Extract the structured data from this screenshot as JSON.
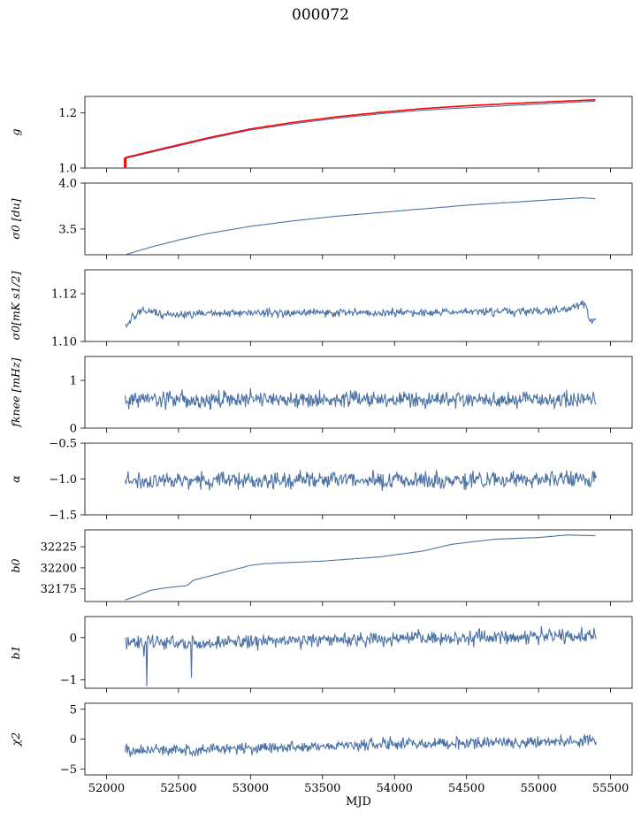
{
  "title": "000072",
  "chart_data": [
    {
      "type": "line",
      "ylabel": "g",
      "yticks": [
        1.0,
        1.2
      ],
      "ylim": [
        1.0,
        1.26
      ],
      "series": [
        {
          "color": "#4c72a4",
          "x": [
            52130,
            52400,
            52700,
            53000,
            53300,
            53600,
            53900,
            54200,
            54500,
            54800,
            55100,
            55400
          ],
          "y": [
            1.035,
            1.068,
            1.105,
            1.138,
            1.161,
            1.181,
            1.197,
            1.21,
            1.219,
            1.227,
            1.235,
            1.243
          ]
        },
        {
          "color": "#ff0000",
          "x": [
            52130,
            52400,
            52700,
            53000,
            53300,
            53600,
            53900,
            54200,
            54500,
            54800,
            55100,
            55400
          ],
          "y": [
            1.038,
            1.072,
            1.109,
            1.142,
            1.166,
            1.186,
            1.202,
            1.216,
            1.226,
            1.234,
            1.241,
            1.248
          ]
        }
      ]
    },
    {
      "type": "line",
      "ylabel": "σ0 [du]",
      "yticks": [
        3.5,
        4.0
      ],
      "ylim": [
        3.22,
        4.0
      ],
      "series": [
        {
          "color": "#4c72a4",
          "x": [
            52130,
            52300,
            52500,
            52700,
            53000,
            53300,
            53600,
            53900,
            54200,
            54500,
            54800,
            55100,
            55300,
            55400
          ],
          "y": [
            3.22,
            3.3,
            3.38,
            3.45,
            3.53,
            3.59,
            3.64,
            3.68,
            3.72,
            3.76,
            3.79,
            3.82,
            3.84,
            3.83
          ]
        }
      ]
    },
    {
      "type": "line",
      "ylabel": "σ0[mK s1/2]",
      "yticks": [
        1.1,
        1.12
      ],
      "ylim": [
        1.1,
        1.13
      ],
      "series": [
        {
          "color": "#4c72a4",
          "base": [
            [
              52130,
              1.106
            ],
            [
              52180,
              1.11
            ],
            [
              52250,
              1.113
            ],
            [
              52400,
              1.111
            ],
            [
              53000,
              1.112
            ],
            [
              54000,
              1.112
            ],
            [
              55200,
              1.113
            ],
            [
              55320,
              1.116
            ],
            [
              55360,
              1.108
            ],
            [
              55400,
              1.11
            ]
          ],
          "noise": 0.0012
        }
      ]
    },
    {
      "type": "line",
      "ylabel": "fknee [mHz]",
      "yticks": [
        0,
        1
      ],
      "ylim": [
        0,
        1.5
      ],
      "series": [
        {
          "color": "#4c72a4",
          "base": [
            [
              52130,
              0.6
            ],
            [
              55400,
              0.6
            ]
          ],
          "noise": 0.12
        }
      ]
    },
    {
      "type": "line",
      "ylabel": "α",
      "yticks": [
        -1.5,
        -1.0,
        -0.5
      ],
      "ylim": [
        -1.5,
        -0.5
      ],
      "series": [
        {
          "color": "#4c72a4",
          "base": [
            [
              52130,
              -1.03
            ],
            [
              55400,
              -1.0
            ]
          ],
          "noise": 0.08
        }
      ]
    },
    {
      "type": "line",
      "ylabel": "b0",
      "yticks": [
        32175,
        32200,
        32225
      ],
      "ylim": [
        32160,
        32245
      ],
      "series": [
        {
          "color": "#4c72a4",
          "x": [
            52130,
            52200,
            52300,
            52400,
            52560,
            52600,
            53000,
            53100,
            53500,
            53900,
            54200,
            54400,
            54700,
            55000,
            55200,
            55400
          ],
          "y": [
            32162,
            32166,
            32173,
            32176,
            32179,
            32185,
            32203,
            32205,
            32208,
            32213,
            32220,
            32228,
            32234,
            32236,
            32239,
            32238
          ]
        }
      ]
    },
    {
      "type": "line",
      "ylabel": "b1",
      "yticks": [
        -1,
        0
      ],
      "ylim": [
        -1.2,
        0.5
      ],
      "series": [
        {
          "color": "#4c72a4",
          "base": [
            [
              52130,
              -0.1
            ],
            [
              52700,
              -0.12
            ],
            [
              53500,
              -0.05
            ],
            [
              54500,
              0.0
            ],
            [
              55400,
              0.05
            ]
          ],
          "noise": 0.12,
          "spikes": [
            [
              52280,
              -1.15
            ],
            [
              52260,
              -0.45
            ],
            [
              52590,
              -0.95
            ]
          ]
        }
      ]
    },
    {
      "type": "line",
      "ylabel": "χ2",
      "yticks": [
        -5,
        0,
        5
      ],
      "ylim": [
        -6,
        6
      ],
      "xlabel": "MJD",
      "xticks": [
        52000,
        52500,
        53000,
        53500,
        54000,
        54500,
        55000,
        55500
      ],
      "series": [
        {
          "color": "#4c72a4",
          "base": [
            [
              52130,
              -2.0
            ],
            [
              53000,
              -1.5
            ],
            [
              54000,
              -0.8
            ],
            [
              55400,
              -0.3
            ]
          ],
          "noise": 0.7
        }
      ]
    }
  ],
  "xlim": [
    51850,
    55650
  ]
}
